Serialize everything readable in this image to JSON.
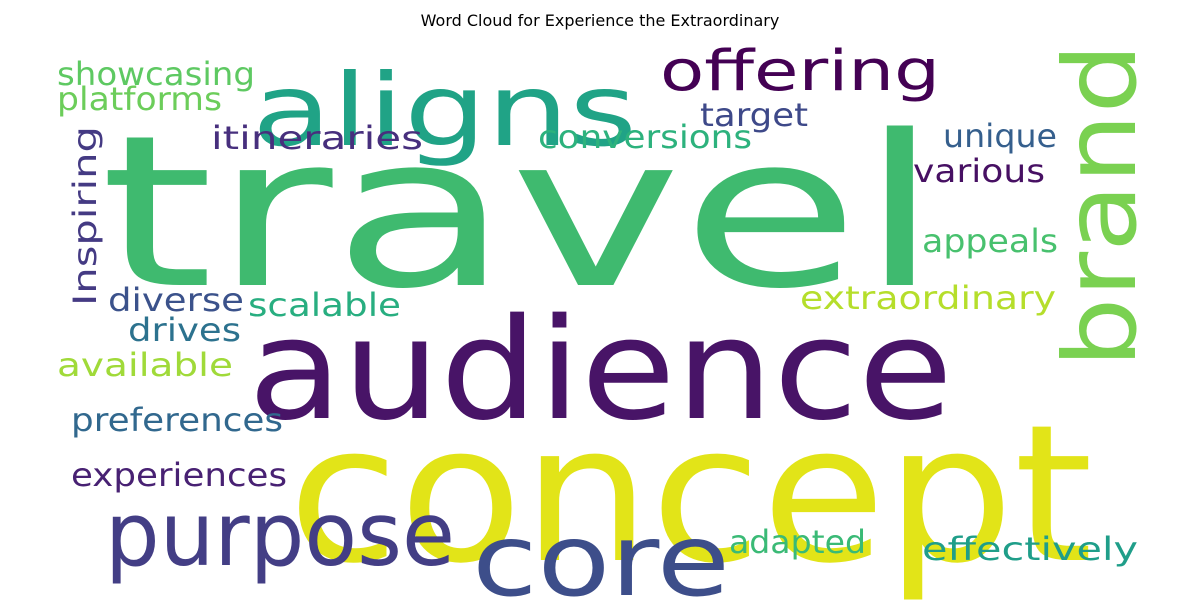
{
  "chart_data": {
    "type": "wordcloud",
    "title": "Word Cloud for Experience the Extraordinary",
    "words": [
      {
        "text": "travel",
        "color": "#3fba6f"
      },
      {
        "text": "concept",
        "color": "#e2e418"
      },
      {
        "text": "audience",
        "color": "#481467"
      },
      {
        "text": "aligns",
        "color": "#20a386"
      },
      {
        "text": "brand",
        "color": "#7ad151"
      },
      {
        "text": "core",
        "color": "#3d4e8a"
      },
      {
        "text": "purpose",
        "color": "#433e85"
      },
      {
        "text": "offering",
        "color": "#440154"
      },
      {
        "text": "Inspiring",
        "color": "#443a83"
      },
      {
        "text": "showcasing",
        "color": "#5ec962"
      },
      {
        "text": "platforms",
        "color": "#6ccd5a"
      },
      {
        "text": "itineraries",
        "color": "#472f7d"
      },
      {
        "text": "target",
        "color": "#3e4989"
      },
      {
        "text": "conversions",
        "color": "#2db27d"
      },
      {
        "text": "unique",
        "color": "#355f8d"
      },
      {
        "text": "various",
        "color": "#471063"
      },
      {
        "text": "appeals",
        "color": "#48c16e"
      },
      {
        "text": "extraordinary",
        "color": "#b5de2b"
      },
      {
        "text": "diverse",
        "color": "#3b528b"
      },
      {
        "text": "scalable",
        "color": "#28ae80"
      },
      {
        "text": "drives",
        "color": "#2c728e"
      },
      {
        "text": "available",
        "color": "#a0da39"
      },
      {
        "text": "preferences",
        "color": "#31688e"
      },
      {
        "text": "experiences",
        "color": "#482173"
      },
      {
        "text": "adapted",
        "color": "#3aba76"
      },
      {
        "text": "effectively",
        "color": "#1f9e89"
      }
    ]
  }
}
